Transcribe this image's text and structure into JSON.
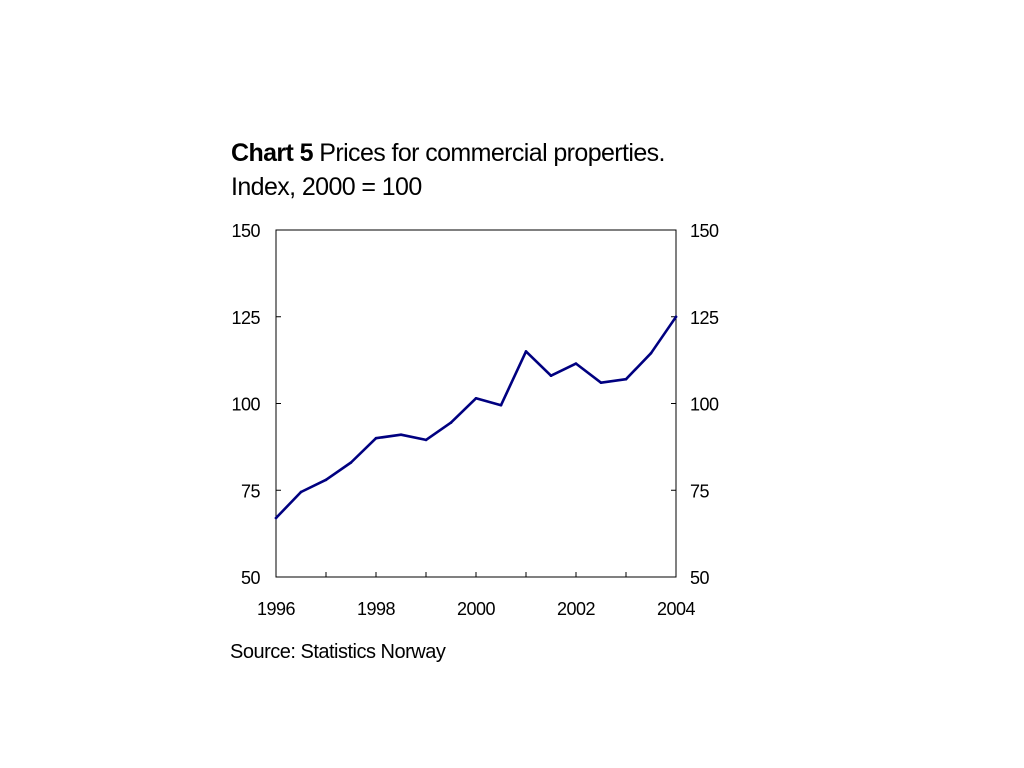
{
  "chart_data": {
    "type": "line",
    "title_label": "Chart 5",
    "title": "Prices for commercial properties.",
    "subtitle": "Index, 2000 = 100",
    "source": "Source: Statistics Norway",
    "xlabel": "",
    "ylabel": "",
    "x_tick_labels": [
      "1996",
      "1998",
      "2000",
      "2002",
      "2004"
    ],
    "y_tick_labels": [
      "150",
      "125",
      "100",
      "75",
      "50"
    ],
    "ylim": [
      50,
      150
    ],
    "xlim": [
      1996,
      2004
    ],
    "grid": false,
    "dual_y_axis": true,
    "series": [
      {
        "color": "#000080",
        "x": [
          1996.0,
          1996.5,
          1997.0,
          1997.5,
          1998.0,
          1998.5,
          1999.0,
          1999.5,
          2000.0,
          2000.5,
          2001.0,
          2001.5,
          2002.0,
          2002.5,
          2003.0,
          2003.5,
          2004.0
        ],
        "values": [
          67,
          74.5,
          78,
          83,
          90,
          91,
          89.5,
          94.5,
          101.5,
          99.5,
          115,
          108,
          111.5,
          106,
          107,
          114.5,
          125
        ]
      }
    ]
  }
}
